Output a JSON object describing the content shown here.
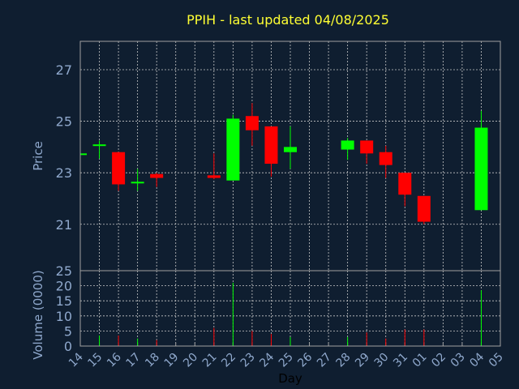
{
  "chart_data": {
    "type": "candlestick",
    "title": "PPIH - last updated 04/08/2025",
    "xlabel": "Day",
    "price_panel": {
      "ylabel": "Price",
      "ylim": [
        19.2,
        28.1
      ],
      "yticks": [
        "21",
        "23",
        "25",
        "27"
      ],
      "ytick_values": [
        21,
        23,
        25,
        27
      ]
    },
    "volume_panel": {
      "ylabel": "Volume (0000)",
      "ylim": [
        0,
        25
      ],
      "yticks": [
        "0",
        "5",
        "10",
        "15",
        "20",
        "25"
      ],
      "ytick_values": [
        0,
        5,
        10,
        15,
        20,
        25
      ]
    },
    "x_tick_labels": [
      "14",
      "15",
      "16",
      "17",
      "18",
      "19",
      "20",
      "21",
      "22",
      "23",
      "24",
      "25",
      "26",
      "27",
      "28",
      "29",
      "30",
      "31",
      "01",
      "02",
      "03",
      "04",
      "05"
    ],
    "candles": [
      {
        "day": "14",
        "open": 23.75,
        "high": 23.75,
        "low": 23.7,
        "close": 23.75,
        "volume": 0.5
      },
      {
        "day": "15",
        "open": 24.05,
        "high": 24.25,
        "low": 23.55,
        "close": 24.1,
        "volume": 3.5
      },
      {
        "day": "16",
        "open": 23.8,
        "high": 23.8,
        "low": 22.3,
        "close": 22.55,
        "volume": 3.5
      },
      {
        "day": "17",
        "open": 22.6,
        "high": 23.15,
        "low": 22.3,
        "close": 22.65,
        "volume": 2.5
      },
      {
        "day": "18",
        "open": 22.95,
        "high": 23.0,
        "low": 22.45,
        "close": 22.8,
        "volume": 2.0
      },
      {
        "day": "21",
        "open": 22.9,
        "high": 23.75,
        "low": 22.75,
        "close": 22.8,
        "volume": 6.0
      },
      {
        "day": "22",
        "open": 22.7,
        "high": 25.25,
        "low": 22.7,
        "close": 25.1,
        "volume": 21.0
      },
      {
        "day": "23",
        "open": 25.2,
        "high": 25.7,
        "low": 24.05,
        "close": 24.65,
        "volume": 5.0
      },
      {
        "day": "24",
        "open": 24.8,
        "high": 24.8,
        "low": 22.85,
        "close": 23.35,
        "volume": 4.0
      },
      {
        "day": "25",
        "open": 23.8,
        "high": 24.8,
        "low": 23.15,
        "close": 24.0,
        "volume": 3.0
      },
      {
        "day": "28",
        "open": 23.9,
        "high": 24.35,
        "low": 23.5,
        "close": 24.25,
        "volume": 3.0
      },
      {
        "day": "29",
        "open": 24.25,
        "high": 24.25,
        "low": 23.35,
        "close": 23.75,
        "volume": 4.5
      },
      {
        "day": "30",
        "open": 23.8,
        "high": 24.05,
        "low": 22.8,
        "close": 23.3,
        "volume": 2.5
      },
      {
        "day": "31",
        "open": 23.0,
        "high": 23.0,
        "low": 21.7,
        "close": 22.15,
        "volume": 5.5
      },
      {
        "day": "01",
        "open": 22.1,
        "high": 22.1,
        "low": 21.0,
        "close": 21.1,
        "volume": 5.5
      },
      {
        "day": "04",
        "open": 21.55,
        "high": 25.4,
        "low": 21.55,
        "close": 24.75,
        "volume": 18.5
      }
    ],
    "colors": {
      "up": "#00ff00",
      "down": "#ff0000",
      "background": "#0f1e30",
      "axis_text": "#8fa8cc",
      "title": "#ffff33",
      "frame": "#a0a0a0",
      "grid": "#c8c8c8"
    },
    "grid": true
  }
}
